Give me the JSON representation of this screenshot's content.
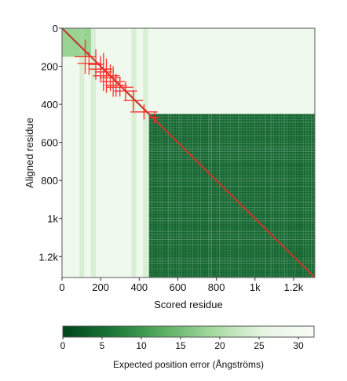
{
  "chart_data": {
    "type": "heatmap",
    "title": "",
    "xlabel": "Scored residue",
    "ylabel": "Aligned residue",
    "n_residues": 1310,
    "x_ticks": [
      {
        "value": 0,
        "label": "0"
      },
      {
        "value": 200,
        "label": "200"
      },
      {
        "value": 400,
        "label": "400"
      },
      {
        "value": 600,
        "label": "600"
      },
      {
        "value": 800,
        "label": "800"
      },
      {
        "value": 1000,
        "label": "1k"
      },
      {
        "value": 1200,
        "label": "1.2k"
      }
    ],
    "y_ticks": [
      {
        "value": 0,
        "label": "0"
      },
      {
        "value": 200,
        "label": "200"
      },
      {
        "value": 400,
        "label": "400"
      },
      {
        "value": 600,
        "label": "600"
      },
      {
        "value": 800,
        "label": "800"
      },
      {
        "value": 1000,
        "label": "1k"
      },
      {
        "value": 1200,
        "label": "1.2k"
      }
    ],
    "regions": [
      {
        "name": "background",
        "x": [
          0,
          1310
        ],
        "y": [
          0,
          1310
        ],
        "error": 29
      },
      {
        "name": "n-terminal-block",
        "x": [
          0,
          150
        ],
        "y": [
          0,
          150
        ],
        "error": 18
      },
      {
        "name": "domain-block",
        "x": [
          450,
          1310
        ],
        "y": [
          450,
          1310
        ],
        "error": 4
      }
    ],
    "diagonal": {
      "error": 1,
      "color": "#c0392b"
    },
    "crosses": [
      {
        "x": 120,
        "y": 150,
        "dx": 55,
        "dy": 90
      },
      {
        "x": 140,
        "y": 185,
        "dx": 60,
        "dy": 60
      },
      {
        "x": 175,
        "y": 190,
        "dx": 40,
        "dy": 80
      },
      {
        "x": 200,
        "y": 215,
        "dx": 60,
        "dy": 70
      },
      {
        "x": 215,
        "y": 230,
        "dx": 45,
        "dy": 100
      },
      {
        "x": 230,
        "y": 250,
        "dx": 70,
        "dy": 90
      },
      {
        "x": 250,
        "y": 260,
        "dx": 55,
        "dy": 70
      },
      {
        "x": 265,
        "y": 280,
        "dx": 60,
        "dy": 80
      },
      {
        "x": 280,
        "y": 300,
        "dx": 55,
        "dy": 60
      },
      {
        "x": 300,
        "y": 310,
        "dx": 70,
        "dy": 50
      },
      {
        "x": 330,
        "y": 330,
        "dx": 60,
        "dy": 50
      },
      {
        "x": 370,
        "y": 380,
        "dx": 50,
        "dy": 55
      },
      {
        "x": 425,
        "y": 440,
        "dx": 70,
        "dy": 40
      },
      {
        "x": 480,
        "y": 470,
        "dx": 30,
        "dy": 30
      }
    ],
    "colorbar": {
      "label": "Expected position error (Ångströms)",
      "min": 0,
      "max": 32,
      "ticks": [
        {
          "value": 0,
          "label": "0"
        },
        {
          "value": 5,
          "label": "5"
        },
        {
          "value": 10,
          "label": "10"
        },
        {
          "value": 15,
          "label": "15"
        },
        {
          "value": 20,
          "label": "20"
        },
        {
          "value": 25,
          "label": "25"
        },
        {
          "value": 30,
          "label": "30"
        }
      ],
      "colors": [
        "#00441b",
        "#1b7837",
        "#5aae61",
        "#a6dba0",
        "#e7f5e4",
        "#f7fcf5"
      ]
    },
    "cross_color": "#ff2a2a"
  }
}
